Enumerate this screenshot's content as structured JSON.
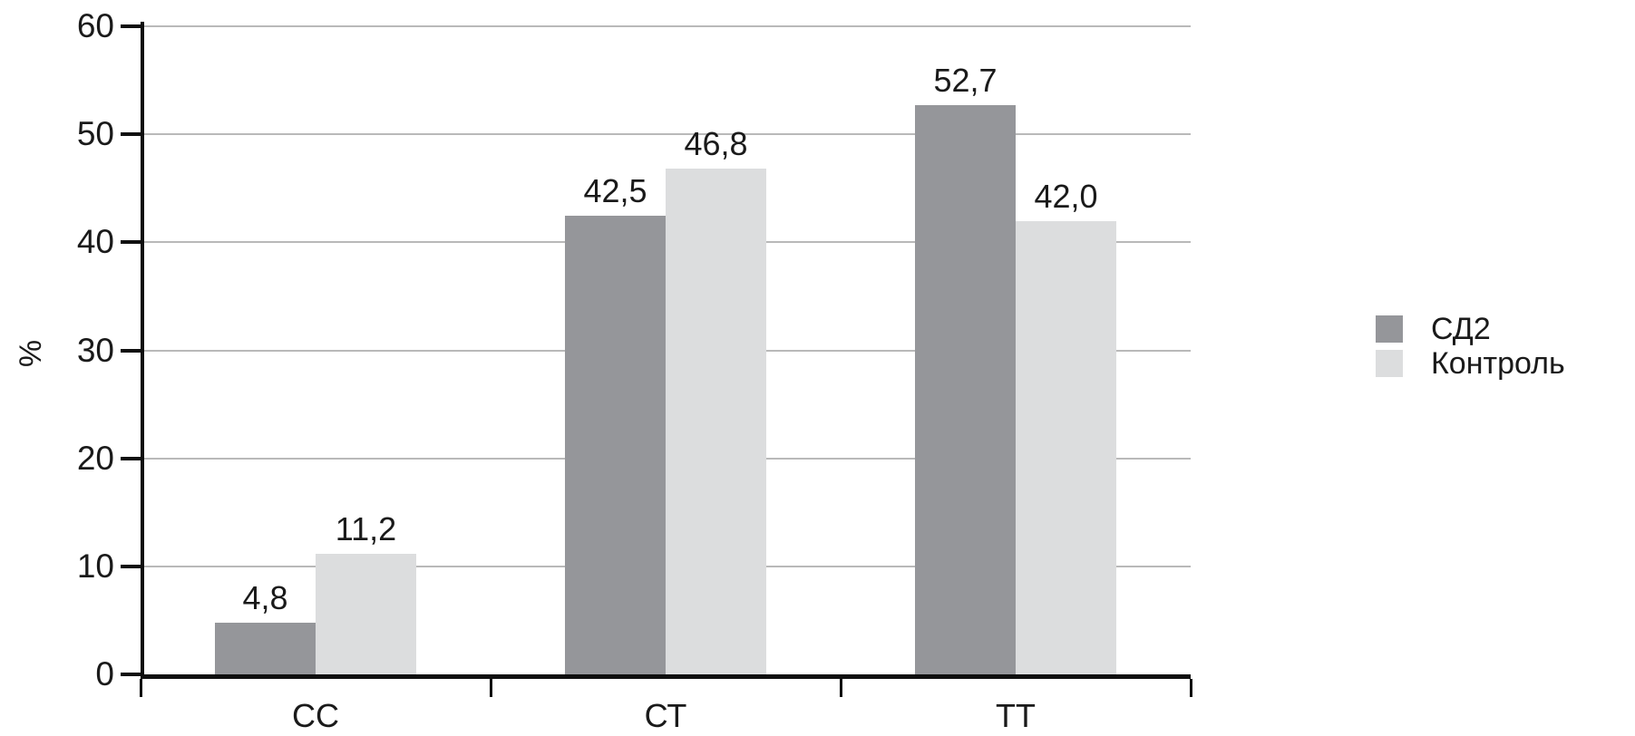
{
  "chart_data": {
    "type": "bar",
    "title": "",
    "xlabel": "",
    "ylabel": "%",
    "ylim": [
      0,
      60
    ],
    "yticks": [
      0,
      10,
      20,
      30,
      40,
      50,
      60
    ],
    "grid": true,
    "legend_position": "right-center",
    "categories": [
      "СС",
      "СТ",
      "ТТ"
    ],
    "category_keys": [
      "cc",
      "ct",
      "tt"
    ],
    "series": [
      {
        "key": "sd2",
        "name": "СД2",
        "color": "#95969a",
        "values": [
          4.8,
          42.5,
          52.7
        ],
        "labels": [
          "4,8",
          "42,5",
          "52,7"
        ]
      },
      {
        "key": "control",
        "name": "Контроль",
        "color": "#dcddde",
        "values": [
          11.2,
          46.8,
          42.0
        ],
        "labels": [
          "11,2",
          "46,8",
          "42,0"
        ]
      }
    ],
    "colors": {
      "gridline": "#b9b9b9",
      "axis": "#0f0f0f",
      "text": "#1a1a1a",
      "background": "#ffffff"
    }
  }
}
